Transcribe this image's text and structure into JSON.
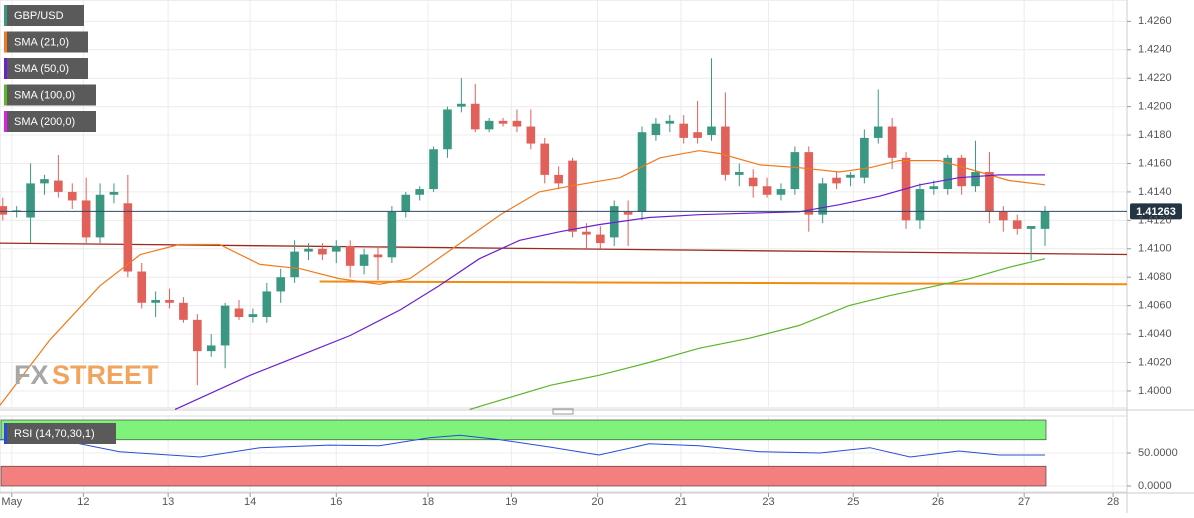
{
  "chart_data": [
    {
      "type": "candlestick",
      "title": "GBP/USD",
      "color_up": "#3a9882",
      "color_down": "#e2605a",
      "watermark": [
        "FX",
        "STREET"
      ],
      "open": [
        1.413,
        1.4126,
        1.4122,
        1.4146,
        1.4148,
        1.414,
        1.4134,
        1.4108,
        1.4138,
        1.4132,
        1.4084,
        1.4062,
        1.4064,
        1.4062,
        1.405,
        1.4028,
        1.4032,
        1.4058,
        1.4052,
        1.4052,
        1.407,
        1.408,
        1.4098,
        1.41,
        1.4098,
        1.4102,
        1.4088,
        1.4096,
        1.4094,
        1.4126,
        1.4138,
        1.4142,
        1.417,
        1.42,
        1.4202,
        1.4184,
        1.419,
        1.419,
        1.4186,
        1.4174,
        1.4152,
        1.4162,
        1.4112,
        1.411,
        1.4108,
        1.4126,
        1.4126,
        1.418,
        1.4188,
        1.4188,
        1.4182,
        1.418,
        1.4186,
        1.4152,
        1.415,
        1.4144,
        1.4138,
        1.4142,
        1.4168,
        1.4124,
        1.415,
        1.415,
        1.415,
        1.4178,
        1.4186,
        1.4164,
        1.412,
        1.4142,
        1.4142,
        1.4164,
        1.4144,
        1.4154,
        1.4126,
        1.412,
        1.4114,
        1.4114
      ],
      "high": [
        1.4136,
        1.413,
        1.416,
        1.4152,
        1.4166,
        1.4146,
        1.415,
        1.4146,
        1.4146,
        1.4152,
        1.409,
        1.407,
        1.4072,
        1.4066,
        1.4054,
        1.404,
        1.4062,
        1.4064,
        1.4058,
        1.4076,
        1.4086,
        1.4106,
        1.4104,
        1.4104,
        1.4106,
        1.4106,
        1.41,
        1.4102,
        1.413,
        1.414,
        1.4144,
        1.4172,
        1.42,
        1.422,
        1.4216,
        1.4192,
        1.4192,
        1.4198,
        1.4198,
        1.4178,
        1.4158,
        1.4164,
        1.4118,
        1.4116,
        1.4134,
        1.4134,
        1.4186,
        1.4192,
        1.4194,
        1.4194,
        1.4204,
        1.4234,
        1.421,
        1.416,
        1.4156,
        1.415,
        1.4146,
        1.4172,
        1.4172,
        1.415,
        1.4154,
        1.4154,
        1.4184,
        1.4212,
        1.4192,
        1.4168,
        1.4146,
        1.4148,
        1.4166,
        1.4166,
        1.4176,
        1.4168,
        1.413,
        1.4124,
        1.4116,
        1.413
      ],
      "low": [
        1.412,
        1.4122,
        1.4104,
        1.4138,
        1.4136,
        1.4128,
        1.4104,
        1.4104,
        1.4132,
        1.408,
        1.4058,
        1.4052,
        1.4058,
        1.4048,
        1.4004,
        1.4024,
        1.4016,
        1.405,
        1.4048,
        1.4048,
        1.4062,
        1.4076,
        1.4092,
        1.4092,
        1.409,
        1.408,
        1.4082,
        1.4078,
        1.409,
        1.4122,
        1.4134,
        1.414,
        1.4164,
        1.4196,
        1.4182,
        1.4182,
        1.4186,
        1.4182,
        1.417,
        1.4146,
        1.4142,
        1.4108,
        1.41,
        1.41,
        1.4102,
        1.4102,
        1.412,
        1.4176,
        1.4182,
        1.4174,
        1.4174,
        1.4176,
        1.4148,
        1.4144,
        1.4136,
        1.4136,
        1.4134,
        1.4138,
        1.4112,
        1.4118,
        1.4142,
        1.4144,
        1.4146,
        1.4174,
        1.4156,
        1.4114,
        1.4114,
        1.4138,
        1.4138,
        1.4138,
        1.414,
        1.4118,
        1.4112,
        1.411,
        1.4092,
        1.4102
      ],
      "close": [
        1.4124,
        1.4127,
        1.4146,
        1.4149,
        1.414,
        1.4134,
        1.4108,
        1.4138,
        1.414,
        1.4084,
        1.4062,
        1.4064,
        1.4062,
        1.405,
        1.4028,
        1.4032,
        1.406,
        1.4052,
        1.4054,
        1.407,
        1.408,
        1.4098,
        1.41,
        1.4096,
        1.4102,
        1.4088,
        1.4096,
        1.4094,
        1.4126,
        1.4138,
        1.4142,
        1.417,
        1.4198,
        1.4202,
        1.4184,
        1.419,
        1.4188,
        1.4186,
        1.4174,
        1.4152,
        1.4146,
        1.4112,
        1.411,
        1.4104,
        1.413,
        1.4124,
        1.4182,
        1.4188,
        1.419,
        1.4178,
        1.4178,
        1.4186,
        1.4152,
        1.4154,
        1.4144,
        1.4138,
        1.4142,
        1.4168,
        1.4124,
        1.4146,
        1.4146,
        1.4152,
        1.4178,
        1.4186,
        1.4164,
        1.412,
        1.4142,
        1.4144,
        1.4164,
        1.4144,
        1.4154,
        1.4126,
        1.412,
        1.4114,
        1.4116,
        1.4126
      ],
      "series": [
        {
          "name": "SMA (21,0)",
          "color": "#f07a1b",
          "x": [
            -0.2,
            3.4,
            7.0,
            9.9,
            12.7,
            15.6,
            18.5,
            21.4,
            24.2,
            27.1,
            29.3,
            32.2,
            35.8,
            38.6,
            40.8,
            44.4,
            47.3,
            50.1,
            51.6,
            54.5,
            57.3,
            60.2,
            62.4,
            64.5,
            67.4,
            70.3,
            72.4,
            75
          ],
          "values": [
            1.399,
            1.4036,
            1.4074,
            1.4096,
            1.4103,
            1.4103,
            1.4089,
            1.4086,
            1.4079,
            1.4075,
            1.4079,
            1.4099,
            1.4124,
            1.414,
            1.4144,
            1.415,
            1.4164,
            1.4169,
            1.4167,
            1.4159,
            1.4157,
            1.4154,
            1.4157,
            1.4162,
            1.4162,
            1.4154,
            1.4148,
            1.4145
          ]
        },
        {
          "name": "SMA (50,0)",
          "color": "#6a1fd0",
          "x": [
            12.4,
            17.8,
            21.4,
            25,
            28.6,
            31.4,
            34.3,
            37.2,
            40.1,
            42.9,
            46.5,
            50.1,
            53.7,
            57.3,
            60.2,
            63.1,
            66,
            68.8,
            71.7,
            75
          ],
          "values": [
            1.3987,
            1.4011,
            1.4025,
            1.4039,
            1.4057,
            1.4074,
            1.4093,
            1.4106,
            1.4112,
            1.4117,
            1.4122,
            1.4124,
            1.4125,
            1.4126,
            1.4131,
            1.4137,
            1.4145,
            1.415,
            1.4152,
            1.4152
          ]
        },
        {
          "name": "SMA (100,0)",
          "color": "#5ab62a",
          "x": [
            33.6,
            39.4,
            42.9,
            46.5,
            50.1,
            53.7,
            57.3,
            60.9,
            63.8,
            66.7,
            69.6,
            72.4,
            75
          ],
          "values": [
            1.3987,
            1.4004,
            1.4011,
            1.402,
            1.403,
            1.4037,
            1.4046,
            1.406,
            1.4067,
            1.4073,
            1.4079,
            1.4087,
            1.4093
          ]
        },
        {
          "name": "SMA (200,0)",
          "color": "#e41ee4",
          "x": [],
          "values": []
        }
      ],
      "trendlines": [
        {
          "color": "#9a2a20",
          "x": [
            -0.2,
            80.9
          ],
          "values": [
            1.4104,
            1.4096
          ]
        },
        {
          "color": "#f28c10",
          "x": [
            22.8,
            80.9
          ],
          "values": [
            1.4077,
            1.4075
          ]
        }
      ],
      "last_price": 1.41263,
      "xlim": [
        -0.2,
        80.9
      ],
      "xticks": [
        {
          "value": 0.65,
          "label": "May"
        },
        {
          "value": 5.8,
          "label": "12"
        },
        {
          "value": 11.9,
          "label": "13"
        },
        {
          "value": 17.8,
          "label": "14"
        },
        {
          "value": 24.0,
          "label": "16"
        },
        {
          "value": 30.6,
          "label": "18"
        },
        {
          "value": 36.6,
          "label": "19"
        },
        {
          "value": 42.8,
          "label": "20"
        },
        {
          "value": 48.8,
          "label": "21"
        },
        {
          "value": 55.1,
          "label": "23"
        },
        {
          "value": 61.2,
          "label": "25"
        },
        {
          "value": 67.3,
          "label": "26"
        },
        {
          "value": 73.5,
          "label": "27"
        },
        {
          "value": 79.9,
          "label": "28"
        }
      ],
      "ylim": [
        1.3988,
        1.4275
      ],
      "yticks": [
        {
          "value": 1.4,
          "label": "1.4000"
        },
        {
          "value": 1.402,
          "label": "1.4020"
        },
        {
          "value": 1.404,
          "label": "1.4040"
        },
        {
          "value": 1.406,
          "label": "1.4060"
        },
        {
          "value": 1.408,
          "label": "1.4080"
        },
        {
          "value": 1.41,
          "label": "1.4100"
        },
        {
          "value": 1.412,
          "label": "1.4120"
        },
        {
          "value": 1.414,
          "label": "1.4140"
        },
        {
          "value": 1.416,
          "label": "1.4160"
        },
        {
          "value": 1.418,
          "label": "1.4180"
        },
        {
          "value": 1.42,
          "label": "1.4200"
        },
        {
          "value": 1.422,
          "label": "1.4220"
        },
        {
          "value": 1.424,
          "label": "1.4240"
        },
        {
          "value": 1.426,
          "label": "1.4260"
        }
      ],
      "grid": true
    },
    {
      "type": "line",
      "title": "RSI (14,70,30,1)",
      "color": "#2a4bd8",
      "overbought": 70,
      "oversold": 30,
      "x": [
        -0.2,
        4.1,
        8.4,
        14.2,
        18.5,
        23.5,
        27.1,
        30.7,
        32.9,
        35.8,
        39.4,
        42.9,
        46.5,
        50.1,
        54.5,
        58.8,
        62.4,
        65.3,
        68.8,
        71.7,
        75
      ],
      "values": [
        70,
        70,
        52,
        44,
        58,
        62,
        61,
        73,
        77,
        70,
        59,
        47,
        64,
        61,
        52,
        50,
        58,
        44,
        53,
        47,
        47
      ],
      "xlim": [
        -0.2,
        80.9
      ],
      "ylim": [
        0,
        100
      ],
      "yticks": [
        {
          "value": 0,
          "label": "0.0000"
        },
        {
          "value": 50,
          "label": "50.0000"
        }
      ]
    }
  ]
}
